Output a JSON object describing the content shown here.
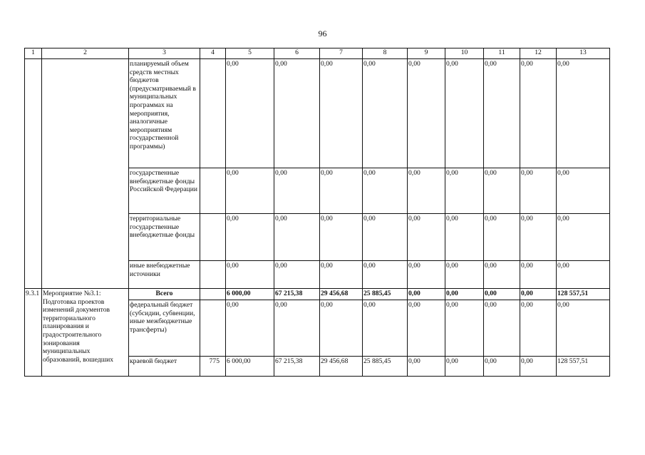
{
  "page_number": "96",
  "header": [
    "1",
    "2",
    "3",
    "4",
    "5",
    "6",
    "7",
    "8",
    "9",
    "10",
    "11",
    "12",
    "13"
  ],
  "rows_prev": [
    {
      "source": "планируемый объем средств местных бюджетов (предусматриваемый в муниципальных программах на мероприятия, аналогичные мероприятиям государственной программы)",
      "code": "",
      "values": [
        "0,00",
        "0,00",
        "0,00",
        "0,00",
        "0,00",
        "0,00",
        "0,00",
        "0,00",
        "0,00"
      ]
    },
    {
      "source": "государственные внебюджетные фонды Российской Федерации",
      "code": "",
      "values": [
        "0,00",
        "0,00",
        "0,00",
        "0,00",
        "0,00",
        "0,00",
        "0,00",
        "0,00",
        "0,00"
      ]
    },
    {
      "source": "территориальные государственные внебюджетные фонды",
      "code": "",
      "values": [
        "0,00",
        "0,00",
        "0,00",
        "0,00",
        "0,00",
        "0,00",
        "0,00",
        "0,00",
        "0,00"
      ]
    },
    {
      "source": "иные внебюджетные источники",
      "code": "",
      "values": [
        "0,00",
        "0,00",
        "0,00",
        "0,00",
        "0,00",
        "0,00",
        "0,00",
        "0,00",
        "0,00"
      ]
    }
  ],
  "measure": {
    "number": "9.3.1",
    "name": "Мероприятие №3.1: Подготовка проектов изменений документов территориального планирования и градостроительного зонирования муниципальных образований, вошедших",
    "rows": [
      {
        "source": "Всего",
        "code": "",
        "values": [
          "6 000,00",
          "67 215,38",
          "29 456,68",
          "25 885,45",
          "0,00",
          "0,00",
          "0,00",
          "0,00",
          "128 557,51"
        ]
      },
      {
        "source": "федеральный бюджет (субсидии, субвенции, иные межбюджетные трансферты)",
        "code": "",
        "values": [
          "0,00",
          "0,00",
          "0,00",
          "0,00",
          "0,00",
          "0,00",
          "0,00",
          "0,00",
          "0,00"
        ]
      },
      {
        "source": "краевой бюджет",
        "code": "775",
        "values": [
          "6 000,00",
          "67 215,38",
          "29 456,68",
          "25 885,45",
          "0,00",
          "0,00",
          "0,00",
          "0,00",
          "128 557,51"
        ]
      }
    ]
  }
}
